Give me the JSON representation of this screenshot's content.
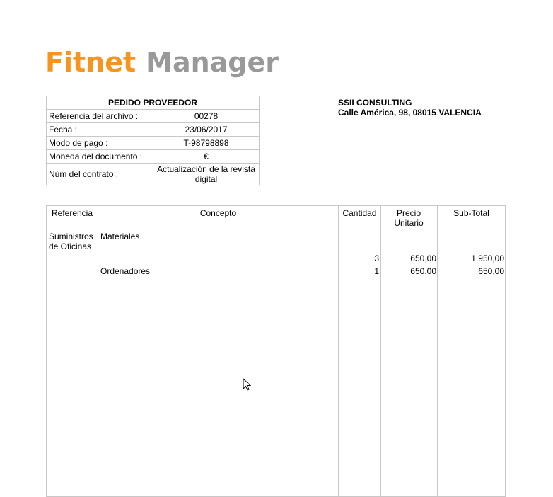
{
  "logo": {
    "part1": "Fitnet",
    "part2": "Manager",
    "colors": {
      "orange": "#f7941d",
      "gray": "#999999"
    }
  },
  "info": {
    "title": "PEDIDO PROVEEDOR",
    "rows": [
      {
        "label": "Referencia del archivo :",
        "value": "00278"
      },
      {
        "label": "Fecha :",
        "value": "23/06/2017"
      },
      {
        "label": "Modo de pago :",
        "value": "T-98798898"
      },
      {
        "label": "Moneda del documento :",
        "value": "€"
      },
      {
        "label": "Núm del contrato :",
        "value": "Actualización de la revista digital"
      }
    ]
  },
  "supplier": {
    "name": "SSII CONSULTING",
    "address": "Calle América, 98, 08015 VALENCIA"
  },
  "lines": {
    "headers": [
      "Referencia",
      "Concepto",
      "Cantidad",
      "Precio Unitario",
      "Sub-Total"
    ],
    "reference": "Suministros de Oficinas",
    "items": [
      {
        "concepto": "Materiales",
        "cantidad": "3",
        "precio": "650,00",
        "subtotal": "1.950,00"
      },
      {
        "concepto": "Ordenadores",
        "cantidad": "1",
        "precio": "650,00",
        "subtotal": "650,00"
      }
    ]
  }
}
